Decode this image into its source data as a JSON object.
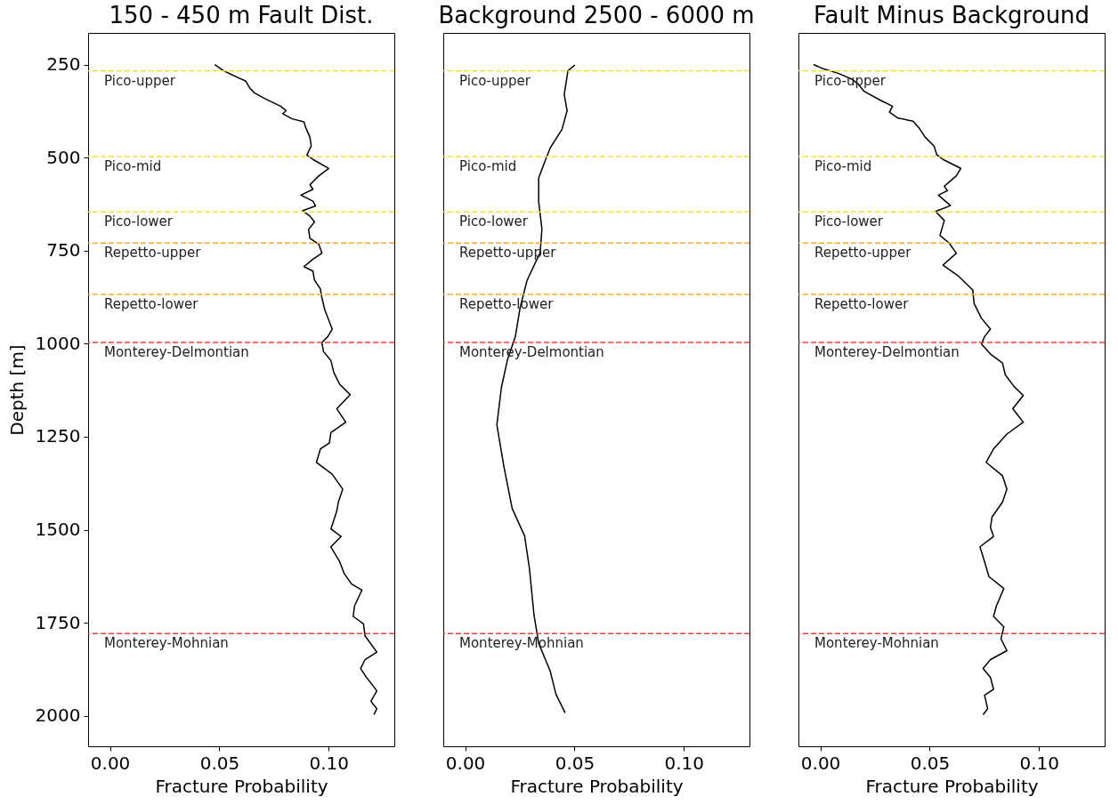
{
  "chart_data": [
    {
      "type": "line",
      "title": "150 - 450 m Fault Dist.",
      "xlabel": "Fracture Probability",
      "ylabel": "Depth [m]",
      "series": [
        {
          "color": "#000000",
          "x": [
            0.0479,
            0.052,
            0.0588,
            0.062,
            0.064,
            0.066,
            0.071,
            0.078,
            0.0805,
            0.079,
            0.0833,
            0.0887,
            0.0894,
            0.0914,
            0.092,
            0.09,
            0.0928,
            0.1,
            0.0955,
            0.0914,
            0.0928,
            0.0873,
            0.0928,
            0.094,
            0.088,
            0.0914,
            0.0935,
            0.0908,
            0.0914,
            0.0955,
            0.0969,
            0.0928,
            0.0887,
            0.0928,
            0.0935,
            0.0962,
            0.0969,
            0.0982,
            0.1016,
            0.0996,
            0.0969,
            0.0976,
            0.101,
            0.1023,
            0.105,
            0.1098,
            0.1037,
            0.1078,
            0.101,
            0.1003,
            0.0962,
            0.0944,
            0.1016,
            0.1064,
            0.1044,
            0.1037,
            0.101,
            0.1057,
            0.101,
            0.105,
            0.1071,
            0.1105,
            0.1152,
            0.1118,
            0.1112,
            0.1159,
            0.1166,
            0.122,
            0.1166,
            0.1146,
            0.1173,
            0.122,
            0.1193,
            0.122,
            0.1207
          ],
          "values": [
            250,
            267,
            286,
            294,
            314,
            326,
            342,
            362,
            374,
            382,
            396,
            404,
            418,
            445,
            469,
            493,
            505,
            529,
            549,
            573,
            585,
            601,
            617,
            630,
            643,
            657,
            673,
            693,
            717,
            733,
            757,
            773,
            793,
            805,
            829,
            853,
            877,
            909,
            961,
            981,
            997,
            1021,
            1045,
            1077,
            1109,
            1137,
            1175,
            1211,
            1239,
            1267,
            1283,
            1319,
            1351,
            1391,
            1426,
            1450,
            1498,
            1518,
            1546,
            1586,
            1618,
            1646,
            1662,
            1705,
            1733,
            1753,
            1785,
            1829,
            1849,
            1873,
            1897,
            1933,
            1961,
            1981,
            1997
          ]
        }
      ],
      "xlim": [
        -0.01,
        0.13
      ],
      "xticks": [
        {
          "value": 0,
          "label": "0.00"
        },
        {
          "value": 0.05,
          "label": "0.05"
        },
        {
          "value": 0.1,
          "label": "0.10"
        }
      ],
      "ylim": [
        2082,
        165
      ],
      "yticks": [
        250,
        500,
        750,
        1000,
        1250,
        1500,
        1750,
        2000
      ],
      "ref_lines": [
        {
          "axis": "y",
          "value": 267,
          "label": "Pico-upper",
          "color": "#efe62c",
          "line_style": "dashed"
        },
        {
          "axis": "y",
          "value": 497,
          "label": "Pico-mid",
          "color": "#efe62c",
          "line_style": "dashed"
        },
        {
          "axis": "y",
          "value": 646,
          "label": "Pico-lower",
          "color": "#efe62c",
          "line_style": "dashed"
        },
        {
          "axis": "y",
          "value": 730,
          "label": "Repetto-upper",
          "color": "#ffa726",
          "line_style": "dashed"
        },
        {
          "axis": "y",
          "value": 868,
          "label": "Repetto-lower",
          "color": "#ffa726",
          "line_style": "dashed"
        },
        {
          "axis": "y",
          "value": 997,
          "label": "Monterey-Delmontian",
          "color": "#ef3b3b",
          "line_style": "dashed"
        },
        {
          "axis": "y",
          "value": 1779,
          "label": "Monterey-Mohnian",
          "color": "#ef3b3b",
          "line_style": "dashed"
        }
      ]
    },
    {
      "type": "line",
      "title": "Background 2500 - 6000 m",
      "xlabel": "Fracture Probability",
      "series": [
        {
          "color": "#000000",
          "x": [
            0.0502,
            0.047,
            0.0453,
            0.0466,
            0.0443,
            0.0389,
            0.0368,
            0.0336,
            0.0336,
            0.0351,
            0.0343,
            0.0283,
            0.0251,
            0.023,
            0.0194,
            0.0166,
            0.0145,
            0.0177,
            0.0215,
            0.0272,
            0.0294,
            0.0315,
            0.0336,
            0.0389,
            0.0415,
            0.0457
          ],
          "values": [
            251,
            267,
            330,
            374,
            424,
            474,
            505,
            555,
            617,
            692,
            755,
            830,
            904,
            980,
            1042,
            1117,
            1218,
            1330,
            1443,
            1517,
            1605,
            1730,
            1805,
            1880,
            1942,
            1992
          ]
        }
      ],
      "xlim": [
        -0.01,
        0.13
      ],
      "xticks": [
        {
          "value": 0,
          "label": "0.00"
        },
        {
          "value": 0.05,
          "label": "0.05"
        },
        {
          "value": 0.1,
          "label": "0.10"
        }
      ],
      "ylim": [
        2082,
        165
      ],
      "tick_labels": "x",
      "ref_lines": [
        {
          "axis": "y",
          "value": 267,
          "label": "Pico-upper",
          "color": "#efe62c",
          "line_style": "dashed"
        },
        {
          "axis": "y",
          "value": 497,
          "label": "Pico-mid",
          "color": "#efe62c",
          "line_style": "dashed"
        },
        {
          "axis": "y",
          "value": 646,
          "label": "Pico-lower",
          "color": "#efe62c",
          "line_style": "dashed"
        },
        {
          "axis": "y",
          "value": 730,
          "label": "Repetto-upper",
          "color": "#ffa726",
          "line_style": "dashed"
        },
        {
          "axis": "y",
          "value": 868,
          "label": "Repetto-lower",
          "color": "#ffa726",
          "line_style": "dashed"
        },
        {
          "axis": "y",
          "value": 997,
          "label": "Monterey-Delmontian",
          "color": "#ef3b3b",
          "line_style": "dashed"
        },
        {
          "axis": "y",
          "value": 1779,
          "label": "Monterey-Mohnian",
          "color": "#ef3b3b",
          "line_style": "dashed"
        }
      ]
    },
    {
      "type": "line",
      "title": "Fault Minus Background",
      "xlabel": "Fracture Probability",
      "series": [
        {
          "color": "#000000",
          "x": [
            -0.0031,
            0.0016,
            0.0084,
            0.0146,
            0.0173,
            0.02,
            0.0275,
            0.033,
            0.0316,
            0.0356,
            0.0424,
            0.0452,
            0.0479,
            0.052,
            0.0533,
            0.0561,
            0.0642,
            0.0622,
            0.0567,
            0.0581,
            0.054,
            0.0595,
            0.0527,
            0.0567,
            0.0547,
            0.0588,
            0.0622,
            0.0561,
            0.0629,
            0.0697,
            0.0703,
            0.0737,
            0.0778,
            0.0751,
            0.0737,
            0.0778,
            0.0833,
            0.0846,
            0.0887,
            0.0928,
            0.088,
            0.0928,
            0.0853,
            0.0792,
            0.0758,
            0.0833,
            0.0853,
            0.0833,
            0.0785,
            0.0778,
            0.0792,
            0.073,
            0.0751,
            0.0771,
            0.0839,
            0.0805,
            0.0792,
            0.0839,
            0.0826,
            0.0853,
            0.0778,
            0.0744,
            0.0778,
            0.0792,
            0.0751,
            0.0765,
            0.0744
          ],
          "values": [
            250,
            262,
            274,
            290,
            302,
            322,
            346,
            362,
            378,
            394,
            402,
            421,
            445,
            469,
            493,
            505,
            529,
            549,
            577,
            589,
            601,
            629,
            645,
            669,
            709,
            729,
            757,
            789,
            817,
            856,
            892,
            932,
            961,
            981,
            1001,
            1028,
            1052,
            1084,
            1116,
            1139,
            1175,
            1211,
            1243,
            1283,
            1319,
            1355,
            1391,
            1426,
            1466,
            1494,
            1518,
            1546,
            1586,
            1626,
            1658,
            1705,
            1733,
            1761,
            1793,
            1825,
            1849,
            1873,
            1897,
            1929,
            1945,
            1981,
            1997
          ]
        }
      ],
      "xlim": [
        -0.01,
        0.13
      ],
      "xticks": [
        {
          "value": 0,
          "label": "0.00"
        },
        {
          "value": 0.05,
          "label": "0.05"
        },
        {
          "value": 0.1,
          "label": "0.10"
        }
      ],
      "ylim": [
        2082,
        165
      ],
      "tick_labels": "x",
      "ref_lines": [
        {
          "axis": "y",
          "value": 267,
          "label": "Pico-upper",
          "color": "#efe62c",
          "line_style": "dashed"
        },
        {
          "axis": "y",
          "value": 497,
          "label": "Pico-mid",
          "color": "#efe62c",
          "line_style": "dashed"
        },
        {
          "axis": "y",
          "value": 646,
          "label": "Pico-lower",
          "color": "#efe62c",
          "line_style": "dashed"
        },
        {
          "axis": "y",
          "value": 730,
          "label": "Repetto-upper",
          "color": "#ffa726",
          "line_style": "dashed"
        },
        {
          "axis": "y",
          "value": 868,
          "label": "Repetto-lower",
          "color": "#ffa726",
          "line_style": "dashed"
        },
        {
          "axis": "y",
          "value": 997,
          "label": "Monterey-Delmontian",
          "color": "#ef3b3b",
          "line_style": "dashed"
        },
        {
          "axis": "y",
          "value": 1779,
          "label": "Monterey-Mohnian",
          "color": "#ef3b3b",
          "line_style": "dashed"
        }
      ]
    }
  ]
}
